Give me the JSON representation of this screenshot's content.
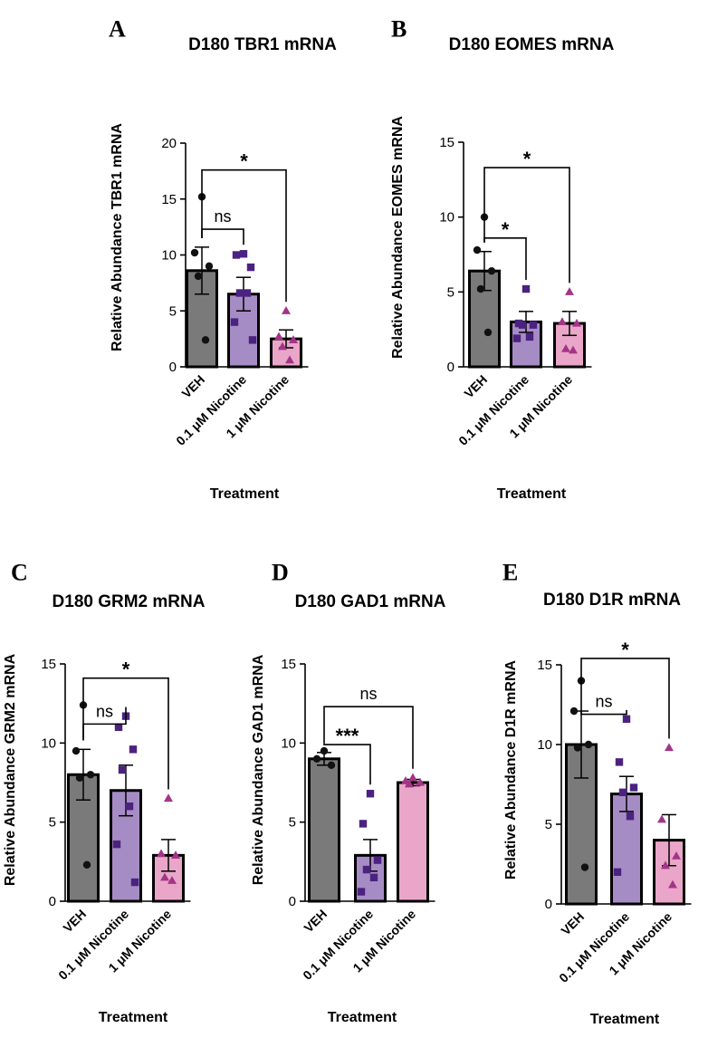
{
  "chart_data": [
    {
      "type": "bar",
      "panel": "A",
      "title": "D180 TBR1 mRNA",
      "ylabel": "Relative Abundance TBR1 mRNA",
      "xlabel": "Treatment",
      "ylim": [
        0,
        20
      ],
      "yticks": [
        0,
        5,
        10,
        15,
        20
      ],
      "categories": [
        "VEH",
        "0.1 μM Nicotine",
        "1 μM Nicotine"
      ],
      "values": [
        8.6,
        6.5,
        2.5
      ],
      "errors": [
        2.1,
        1.5,
        0.8
      ],
      "bar_colors": [
        "#7a7a7a",
        "#a68cc4",
        "#eaa6c8"
      ],
      "point_colors": [
        "#111111",
        "#4b2280",
        "#a23587"
      ],
      "points": [
        [
          15.2,
          10.2,
          9.0,
          8.1,
          2.4
        ],
        [
          10.1,
          10.0,
          8.9,
          6.6,
          6.6,
          4.0,
          2.4
        ],
        [
          5.0,
          2.7,
          2.4,
          1.8,
          0.6
        ]
      ],
      "comparisons": [
        {
          "from": 0,
          "to": 1,
          "label": "ns",
          "y": 12.3
        },
        {
          "from": 0,
          "to": 2,
          "label": "*",
          "y": 17.6
        }
      ]
    },
    {
      "type": "bar",
      "panel": "B",
      "title": "D180 EOMES mRNA",
      "ylabel": "Relative Abundance EOMES mRNA",
      "xlabel": "Treatment",
      "ylim": [
        0,
        15
      ],
      "yticks": [
        0,
        5,
        10,
        15
      ],
      "categories": [
        "VEH",
        "0.1 μM Nicotine",
        "1 μM Nicotine"
      ],
      "values": [
        6.4,
        3.0,
        2.9
      ],
      "errors": [
        1.3,
        0.7,
        0.8
      ],
      "bar_colors": [
        "#7a7a7a",
        "#a68cc4",
        "#eaa6c8"
      ],
      "point_colors": [
        "#111111",
        "#4b2280",
        "#a23587"
      ],
      "points": [
        [
          10.0,
          7.8,
          6.4,
          5.2,
          2.3
        ],
        [
          5.2,
          2.9,
          2.8,
          2.8,
          2.0,
          1.9
        ],
        [
          5.0,
          3.0,
          2.9,
          1.2,
          1.1
        ]
      ],
      "comparisons": [
        {
          "from": 0,
          "to": 1,
          "label": "*",
          "y": 8.6
        },
        {
          "from": 0,
          "to": 2,
          "label": "*",
          "y": 13.3
        }
      ]
    },
    {
      "type": "bar",
      "panel": "C",
      "title": "D180 GRM2 mRNA",
      "ylabel": "Relative Abundance GRM2 mRNA",
      "xlabel": "Treatment",
      "ylim": [
        0,
        15
      ],
      "yticks": [
        0,
        5,
        10,
        15
      ],
      "categories": [
        "VEH",
        "0.1 μM Nicotine",
        "1 μM Nicotine"
      ],
      "values": [
        8.0,
        7.0,
        2.9
      ],
      "errors": [
        1.6,
        1.6,
        1.0
      ],
      "bar_colors": [
        "#7a7a7a",
        "#a68cc4",
        "#eaa6c8"
      ],
      "point_colors": [
        "#111111",
        "#4b2280",
        "#a23587"
      ],
      "points": [
        [
          12.4,
          9.5,
          8.0,
          7.8,
          2.3
        ],
        [
          11.7,
          11.0,
          9.6,
          8.3,
          6.0,
          3.6,
          1.2
        ],
        [
          6.5,
          3.0,
          2.9,
          1.5,
          1.3
        ]
      ],
      "comparisons": [
        {
          "from": 0,
          "to": 1,
          "label": "ns",
          "y": 11.2
        },
        {
          "from": 0,
          "to": 2,
          "label": "*",
          "y": 14.1
        }
      ]
    },
    {
      "type": "bar",
      "panel": "D",
      "title": "D180 GAD1 mRNA",
      "ylabel": "Relative Abundance GAD1 mRNA",
      "xlabel": "Treatment",
      "ylim": [
        0,
        15
      ],
      "yticks": [
        0,
        5,
        10,
        15
      ],
      "categories": [
        "VEH",
        "0.1 μM Nicotine",
        "1 μM Nicotine"
      ],
      "values": [
        9.0,
        2.9,
        7.5
      ],
      "errors": [
        0.4,
        1.0,
        0.2
      ],
      "bar_colors": [
        "#7a7a7a",
        "#a68cc4",
        "#eaa6c8"
      ],
      "point_colors": [
        "#111111",
        "#4b2280",
        "#a23587"
      ],
      "points": [
        [
          9.5,
          9.0,
          8.6
        ],
        [
          6.8,
          4.9,
          2.6,
          2.0,
          1.5,
          0.6
        ],
        [
          7.8,
          7.6,
          7.5,
          7.4
        ]
      ],
      "comparisons": [
        {
          "from": 0,
          "to": 1,
          "label": "***",
          "y": 9.9
        },
        {
          "from": 0,
          "to": 2,
          "label": "ns",
          "y": 12.3
        }
      ]
    },
    {
      "type": "bar",
      "panel": "E",
      "title": "D180 D1R mRNA",
      "ylabel": "Relative Abundance D1R mRNA",
      "xlabel": "Treatment",
      "ylim": [
        0,
        15
      ],
      "yticks": [
        0,
        5,
        10,
        15
      ],
      "categories": [
        "VEH",
        "0.1 μM Nicotine",
        "1 μM Nicotine"
      ],
      "values": [
        10.0,
        6.9,
        4.0
      ],
      "errors": [
        2.1,
        1.1,
        1.6
      ],
      "bar_colors": [
        "#7a7a7a",
        "#a68cc4",
        "#eaa6c8"
      ],
      "point_colors": [
        "#111111",
        "#4b2280",
        "#a23587"
      ],
      "points": [
        [
          14.0,
          12.1,
          10.0,
          9.8,
          2.3
        ],
        [
          11.6,
          8.9,
          7.3,
          7.0,
          5.5,
          2.0
        ],
        [
          9.8,
          5.3,
          3.0,
          2.4,
          1.2
        ]
      ],
      "comparisons": [
        {
          "from": 0,
          "to": 1,
          "label": "ns",
          "y": 11.9
        },
        {
          "from": 0,
          "to": 2,
          "label": "*",
          "y": 15.4
        }
      ]
    }
  ]
}
